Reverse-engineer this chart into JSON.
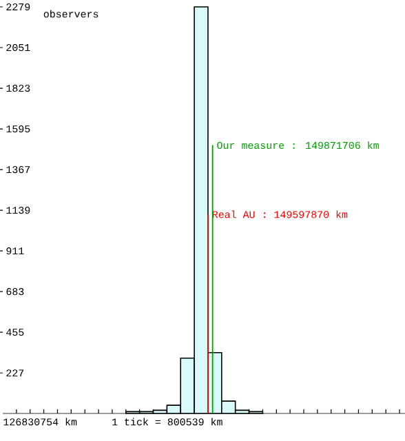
{
  "chart_data": {
    "type": "histogram",
    "ylabel": "observers",
    "bins": [
      144798800,
      145599339,
      146399878,
      147200417,
      148000956,
      148801495,
      149602034,
      150402573,
      151203112,
      152003651,
      152804190
    ],
    "values": [
      10,
      10,
      18,
      46,
      310,
      2279,
      341,
      69,
      18,
      10
    ],
    "color": "#d8fafa",
    "ref_lines": [
      {
        "axis": "x",
        "value": 149597870,
        "label": "Real AU : 149597870 km",
        "color": "#ff0000"
      },
      {
        "axis": "x",
        "value": 149871706,
        "label": "Our measure : 149871706 km",
        "color": "#00a000"
      }
    ],
    "xlim": [
      137593949,
      161129796
    ],
    "xticks": [
      {
        "value": 138394488,
        "label": null
      },
      {
        "value": 139195027,
        "label": null
      },
      {
        "value": 139995566,
        "label": null
      },
      {
        "value": 140796105,
        "label": null
      },
      {
        "value": 141596644,
        "label": null
      },
      {
        "value": 142397183,
        "label": null
      },
      {
        "value": 143197722,
        "label": null
      },
      {
        "value": 143998261,
        "label": null
      },
      {
        "value": 144798800,
        "label": null
      },
      {
        "value": 145599339,
        "label": null
      },
      {
        "value": 146399878,
        "label": null
      },
      {
        "value": 147200417,
        "label": null
      },
      {
        "value": 148000956,
        "label": null
      },
      {
        "value": 148801495,
        "label": null
      },
      {
        "value": 149602034,
        "label": null
      },
      {
        "value": 150402573,
        "label": null
      },
      {
        "value": 151203112,
        "label": null
      },
      {
        "value": 152003651,
        "label": null
      },
      {
        "value": 152804190,
        "label": null
      },
      {
        "value": 153604729,
        "label": null
      },
      {
        "value": 154405268,
        "label": null
      },
      {
        "value": 155205807,
        "label": null
      },
      {
        "value": 156006346,
        "label": null
      },
      {
        "value": 156806885,
        "label": null
      },
      {
        "value": 157607424,
        "label": null
      },
      {
        "value": 158407963,
        "label": null
      },
      {
        "value": 159208502,
        "label": null
      },
      {
        "value": 160009041,
        "label": null
      },
      {
        "value": 160809580,
        "label": null
      }
    ],
    "ylim": [
      0,
      2279
    ],
    "yticks": [
      227,
      455,
      683,
      911,
      1139,
      1367,
      1595,
      1823,
      2051,
      2279
    ],
    "tick_labels": "y",
    "annotations": [
      "126830754 km",
      "1 tick = 800539 km"
    ]
  }
}
